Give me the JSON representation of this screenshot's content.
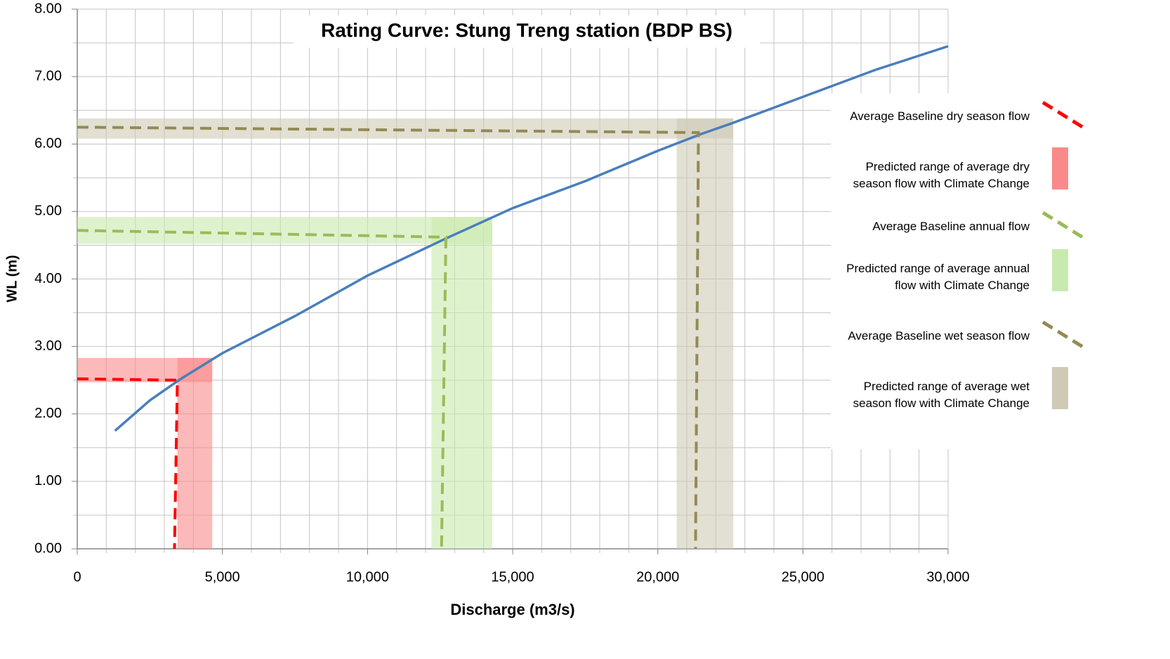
{
  "chart_data": {
    "type": "line",
    "title": "Rating Curve: Stung Treng station (BDP BS)",
    "x_label": "Discharge (m3/s)",
    "y_label": "WL (m)",
    "xlim": [
      0,
      30000
    ],
    "ylim": [
      0,
      8
    ],
    "xticks": [
      0,
      {
        "value": 5000,
        "label": "5,000"
      },
      {
        "value": 10000,
        "label": "10,000"
      },
      {
        "value": 15000,
        "label": "15,000"
      },
      {
        "value": 20000,
        "label": "20,000"
      },
      {
        "value": 25000,
        "label": "25,000"
      },
      {
        "value": 30000,
        "label": "30,000"
      }
    ],
    "yticks": [
      {
        "value": 0,
        "label": "0.00"
      },
      {
        "value": 1,
        "label": "1.00"
      },
      {
        "value": 2,
        "label": "2.00"
      },
      {
        "value": 3,
        "label": "3.00"
      },
      {
        "value": 4,
        "label": "4.00"
      },
      {
        "value": 5,
        "label": "5.00"
      },
      {
        "value": 6,
        "label": "6.00"
      },
      {
        "value": 7,
        "label": "7.00"
      },
      {
        "value": 8,
        "label": "8.00"
      }
    ],
    "grid": true,
    "xgrid_step": 1000,
    "ygrid_step": 0.5,
    "legend": "right",
    "series": [
      {
        "kind": "line",
        "color": "#4a7ebb",
        "dashed": false,
        "x": [
          1300,
          2500,
          3500,
          5000,
          7500,
          10000,
          12700,
          15000,
          17500,
          20000,
          21500,
          22500,
          25000,
          27500,
          30000
        ],
        "values": [
          1.75,
          2.2,
          2.5,
          2.9,
          3.45,
          4.05,
          4.6,
          5.05,
          5.45,
          5.9,
          6.15,
          6.3,
          6.7,
          7.1,
          7.45
        ]
      },
      {
        "name": "Average Baseline dry season flow",
        "kind": "line",
        "color": "#ff0000",
        "dashed": true,
        "x": [
          0,
          3450,
          3350
        ],
        "values": [
          2.52,
          2.5,
          0
        ]
      },
      {
        "name": "Predicted range of average dry season flow with Climate Change",
        "kind": "range",
        "color": "#fa8a8a",
        "x_range": [
          3450,
          4650
        ],
        "y_range": [
          2.47,
          2.83
        ]
      },
      {
        "name": "Average Baseline annual flow",
        "kind": "line",
        "color": "#9bbb59",
        "dashed": true,
        "x": [
          0,
          12700,
          12550
        ],
        "values": [
          4.72,
          4.62,
          0
        ]
      },
      {
        "name": "Predicted range of average annual flow with Climate Change",
        "kind": "range",
        "color": "#c9eaae",
        "x_range": [
          12200,
          14300
        ],
        "y_range": [
          4.52,
          4.92
        ]
      },
      {
        "name": "Average Baseline wet season flow",
        "kind": "line",
        "color": "#948a54",
        "dashed": true,
        "x": [
          0,
          21400,
          21300
        ],
        "values": [
          6.25,
          6.17,
          0
        ]
      },
      {
        "name": "Predicted range of average wet season flow with Climate Change",
        "kind": "range",
        "color": "#cfc9b5",
        "x_range": [
          20650,
          22600
        ],
        "y_range": [
          6.08,
          6.38
        ]
      }
    ]
  }
}
